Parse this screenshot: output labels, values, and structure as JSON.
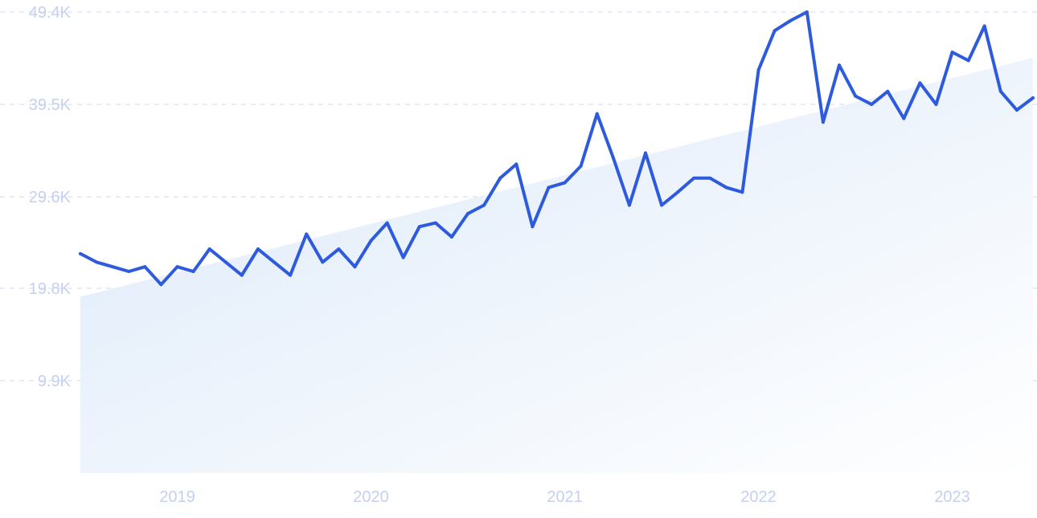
{
  "chart_data": {
    "type": "line",
    "title": "",
    "xlabel": "",
    "ylabel": "",
    "ylim": [
      0,
      49400
    ],
    "yticks": [
      {
        "value": 9900,
        "label": "9.9K"
      },
      {
        "value": 19800,
        "label": "19.8K"
      },
      {
        "value": 29600,
        "label": "29.6K"
      },
      {
        "value": 39500,
        "label": "39.5K"
      },
      {
        "value": 49400,
        "label": "49.4K"
      }
    ],
    "xlim": [
      "2018-07",
      "2023-06"
    ],
    "xticks": [
      {
        "value": "2019-01",
        "label": "2019"
      },
      {
        "value": "2020-01",
        "label": "2020"
      },
      {
        "value": "2021-01",
        "label": "2021"
      },
      {
        "value": "2022-01",
        "label": "2022"
      },
      {
        "value": "2023-01",
        "label": "2023"
      }
    ],
    "grid": true,
    "colors": {
      "line": "#2e5bde",
      "area_top": "#dce9f9",
      "area_bottom": "#ffffff",
      "grid": "#dfe5f6",
      "tick_text": "#c5cff2"
    },
    "trend": {
      "start": {
        "x": "2018-07",
        "y": 18900
      },
      "end": {
        "x": "2023-06",
        "y": 44500
      }
    },
    "series": [
      {
        "x": [
          "2018-07",
          "2018-08",
          "2018-09",
          "2018-10",
          "2018-11",
          "2018-12",
          "2019-01",
          "2019-02",
          "2019-03",
          "2019-04",
          "2019-05",
          "2019-06",
          "2019-07",
          "2019-08",
          "2019-09",
          "2019-10",
          "2019-11",
          "2019-12",
          "2020-01",
          "2020-02",
          "2020-03",
          "2020-04",
          "2020-05",
          "2020-06",
          "2020-07",
          "2020-08",
          "2020-09",
          "2020-10",
          "2020-11",
          "2020-12",
          "2021-01",
          "2021-02",
          "2021-03",
          "2021-04",
          "2021-05",
          "2021-06",
          "2021-07",
          "2021-08",
          "2021-09",
          "2021-10",
          "2021-11",
          "2021-12",
          "2022-01",
          "2022-02",
          "2022-03",
          "2022-04",
          "2022-05",
          "2022-06",
          "2022-07",
          "2022-08",
          "2022-09",
          "2022-10",
          "2022-11",
          "2022-12",
          "2023-01",
          "2023-02",
          "2023-03",
          "2023-04",
          "2023-05",
          "2023-06"
        ],
        "values": [
          23500,
          22600,
          22100,
          21600,
          22100,
          20200,
          22100,
          21600,
          24000,
          22600,
          21200,
          24000,
          22600,
          21200,
          25600,
          22600,
          24000,
          22100,
          24900,
          26800,
          23100,
          26400,
          26800,
          25300,
          27800,
          28700,
          31600,
          33100,
          26400,
          30600,
          31100,
          32900,
          38500,
          33800,
          28700,
          34300,
          28700,
          30100,
          31600,
          31600,
          30600,
          30100,
          43200,
          47400,
          48500,
          49400,
          37600,
          43700,
          40400,
          39500,
          40900,
          38000,
          41800,
          39500,
          45100,
          44200,
          47900,
          40900,
          38900,
          40200
        ]
      }
    ]
  }
}
